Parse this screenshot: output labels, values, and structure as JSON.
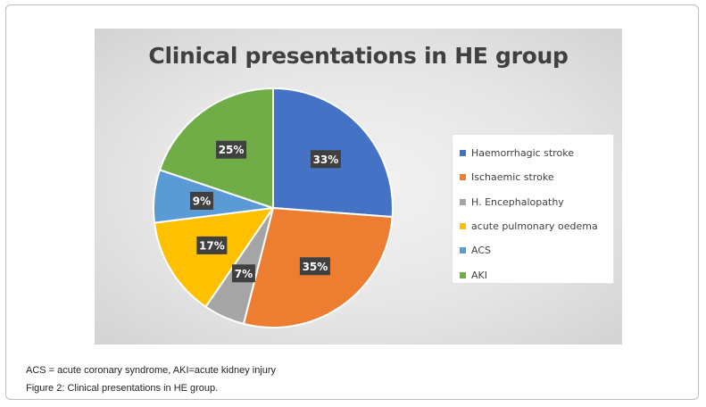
{
  "chart_data": {
    "type": "pie",
    "title": "Clinical presentations in HE group",
    "categories": [
      "Haemorrhagic stroke",
      "Ischaemic stroke",
      "H. Encephalopathy",
      "acute pulmonary oedema",
      "ACS",
      "AKI"
    ],
    "values": [
      33,
      35,
      7,
      17,
      9,
      25
    ],
    "data_labels": [
      "33%",
      "35%",
      "7%",
      "17%",
      "9%",
      "25%"
    ],
    "colors": [
      "#4472c4",
      "#ed7d31",
      "#a5a5a5",
      "#ffc000",
      "#5b9bd5",
      "#70ad47"
    ],
    "legend_position": "right"
  },
  "caption": {
    "abbreviations": "ACS = acute coronary syndrome, AKI=acute kidney injury",
    "figure": "Figure 2: Clinical presentations in HE group."
  }
}
